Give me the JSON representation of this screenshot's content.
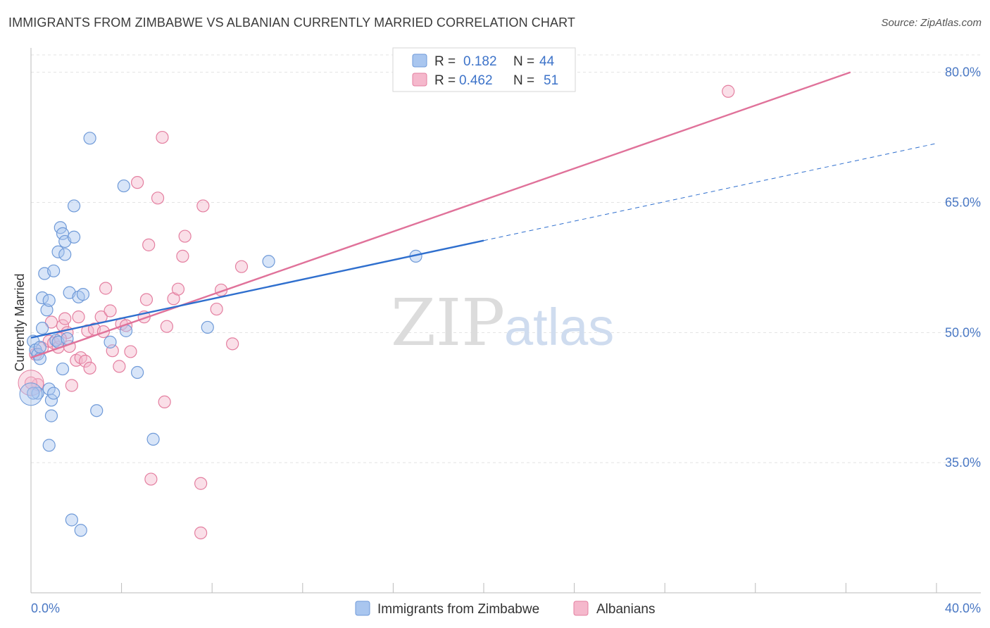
{
  "title": "IMMIGRANTS FROM ZIMBABWE VS ALBANIAN CURRENTLY MARRIED CORRELATION CHART",
  "source": "Source: ZipAtlas.com",
  "watermark": {
    "zip": "ZIP",
    "atlas": "atlas"
  },
  "colors": {
    "blue_fill": "#a9c6ef",
    "blue_stroke": "#6f9ad8",
    "blue_line": "#2f6fce",
    "pink_fill": "#f5b8cc",
    "pink_stroke": "#e47fa0",
    "pink_line": "#e0729a",
    "tick": "#4a78c4",
    "grid": "#e3e3e3"
  },
  "chart_data": {
    "type": "scatter",
    "title": "IMMIGRANTS FROM ZIMBABWE VS ALBANIAN CURRENTLY MARRIED CORRELATION CHART",
    "xlabel": "",
    "ylabel": "Currently Married",
    "xlim": [
      0,
      42
    ],
    "ylim": [
      20,
      82
    ],
    "x_tick_labels": [
      "0.0%",
      "40.0%"
    ],
    "y_ticks": [
      35,
      50,
      65,
      80
    ],
    "y_tick_labels": [
      "35.0%",
      "50.0%",
      "65.0%",
      "80.0%"
    ],
    "grid": true,
    "legend": {
      "position": "top-center",
      "entries": [
        {
          "r_label": "R =",
          "r_value": "0.182",
          "n_label": "N =",
          "n_value": "44"
        },
        {
          "r_label": "R =",
          "r_value": "0.462",
          "n_label": "N =",
          "n_value": "51"
        }
      ]
    },
    "series": [
      {
        "name": "Immigrants from Zimbabwe",
        "points": [
          [
            0.1,
            49.0
          ],
          [
            0.2,
            48.0
          ],
          [
            0.3,
            47.5
          ],
          [
            0.4,
            47.0
          ],
          [
            0.3,
            43.0
          ],
          [
            0.5,
            50.5
          ],
          [
            0.5,
            54.0
          ],
          [
            0.6,
            56.8
          ],
          [
            0.7,
            52.6
          ],
          [
            0.8,
            53.7
          ],
          [
            0.8,
            43.5
          ],
          [
            0.9,
            42.2
          ],
          [
            0.9,
            40.4
          ],
          [
            0.8,
            37.0
          ],
          [
            1.0,
            57.1
          ],
          [
            1.0,
            43.0
          ],
          [
            1.1,
            49.1
          ],
          [
            1.2,
            48.9
          ],
          [
            1.2,
            59.3
          ],
          [
            1.3,
            62.1
          ],
          [
            1.4,
            45.8
          ],
          [
            1.4,
            61.4
          ],
          [
            1.5,
            59.0
          ],
          [
            1.5,
            60.5
          ],
          [
            1.7,
            54.6
          ],
          [
            1.8,
            28.4
          ],
          [
            1.9,
            61.0
          ],
          [
            1.9,
            64.6
          ],
          [
            2.1,
            54.1
          ],
          [
            2.2,
            27.2
          ],
          [
            2.3,
            54.4
          ],
          [
            2.6,
            72.4
          ],
          [
            2.9,
            41.0
          ],
          [
            3.5,
            48.9
          ],
          [
            4.1,
            66.9
          ],
          [
            4.2,
            50.2
          ],
          [
            4.7,
            45.4
          ],
          [
            5.4,
            37.7
          ],
          [
            7.8,
            50.6
          ],
          [
            10.5,
            58.2
          ],
          [
            17.0,
            58.8
          ],
          [
            0.1,
            43.0
          ],
          [
            0.4,
            48.3
          ],
          [
            1.6,
            49.3
          ]
        ],
        "trend_solid": [
          [
            0,
            49.4
          ],
          [
            20,
            60.6
          ]
        ],
        "trend_dashed": [
          [
            20,
            60.6
          ],
          [
            40,
            71.8
          ]
        ]
      },
      {
        "name": "Albanians",
        "points": [
          [
            0.2,
            47.5
          ],
          [
            0.3,
            44.0
          ],
          [
            0.5,
            48.2
          ],
          [
            0.8,
            49.0
          ],
          [
            0.9,
            51.2
          ],
          [
            1.0,
            48.8
          ],
          [
            1.2,
            48.3
          ],
          [
            1.4,
            50.8
          ],
          [
            1.5,
            51.6
          ],
          [
            1.6,
            50.0
          ],
          [
            1.7,
            48.4
          ],
          [
            1.8,
            43.9
          ],
          [
            2.0,
            46.8
          ],
          [
            2.1,
            51.8
          ],
          [
            2.2,
            47.1
          ],
          [
            2.4,
            46.7
          ],
          [
            2.5,
            50.2
          ],
          [
            2.6,
            45.9
          ],
          [
            2.8,
            50.4
          ],
          [
            3.1,
            51.8
          ],
          [
            3.2,
            50.1
          ],
          [
            3.3,
            55.1
          ],
          [
            3.5,
            52.5
          ],
          [
            3.6,
            47.9
          ],
          [
            3.9,
            46.1
          ],
          [
            4.0,
            51.0
          ],
          [
            4.2,
            50.8
          ],
          [
            4.4,
            47.8
          ],
          [
            4.7,
            67.3
          ],
          [
            5.0,
            51.8
          ],
          [
            5.1,
            53.8
          ],
          [
            5.2,
            60.1
          ],
          [
            5.3,
            33.1
          ],
          [
            5.6,
            65.5
          ],
          [
            5.8,
            72.5
          ],
          [
            5.9,
            42.0
          ],
          [
            6.0,
            50.7
          ],
          [
            6.3,
            53.9
          ],
          [
            6.5,
            55.0
          ],
          [
            6.7,
            58.8
          ],
          [
            6.8,
            61.1
          ],
          [
            7.5,
            32.6
          ],
          [
            7.5,
            26.9
          ],
          [
            7.6,
            64.6
          ],
          [
            8.2,
            52.7
          ],
          [
            8.4,
            54.9
          ],
          [
            8.9,
            48.7
          ],
          [
            9.3,
            57.6
          ],
          [
            30.8,
            77.8
          ],
          [
            0.0,
            44.2
          ],
          [
            1.3,
            49.3
          ]
        ],
        "trend": [
          [
            0,
            47.1
          ],
          [
            36.2,
            80.0
          ]
        ]
      }
    ],
    "bottom_legend": [
      "Immigrants from Zimbabwe",
      "Albanians"
    ]
  }
}
